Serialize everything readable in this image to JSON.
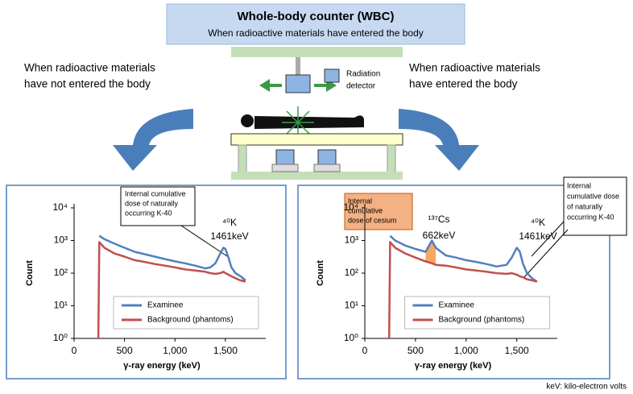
{
  "header": {
    "title": "Whole-body counter (WBC)",
    "subtitle": "When radioactive materials have entered the body"
  },
  "left_caption": [
    "When radioactive materials",
    "have not entered the body"
  ],
  "right_caption": [
    "When radioactive materials",
    "have entered the body"
  ],
  "detector_label": [
    "Radiation",
    "detector"
  ],
  "footnote": "keV: kilo-electron volts",
  "chart_data": [
    {
      "type": "line",
      "xlabel": "γ-ray energy (keV)",
      "ylabel": "Count",
      "yscale": "log",
      "legend": "lower center",
      "annotation": [
        "Internal cumulative",
        "dose of naturally",
        "occurring K-40"
      ],
      "peaks": [
        [
          "⁴⁰K",
          "1461keV"
        ]
      ],
      "xlim": [
        0,
        1900
      ],
      "xticks": [
        0,
        500,
        {
          "value": 1000,
          "label": "1,000"
        },
        {
          "value": 1500,
          "label": "1,500"
        }
      ],
      "ylim": [
        1,
        10000
      ],
      "yticks": [
        {
          "value": 1,
          "label": "10⁰"
        },
        {
          "value": 10,
          "label": "10¹"
        },
        {
          "value": 100,
          "label": "10²"
        },
        {
          "value": 1000,
          "label": "10³"
        },
        {
          "value": 10000,
          "label": "10⁴"
        }
      ],
      "x": [
        240,
        250,
        300,
        400,
        500,
        600,
        700,
        800,
        900,
        1000,
        1100,
        1200,
        1300,
        1350,
        1400,
        1450,
        1480,
        1500,
        1530,
        1560,
        1600,
        1650,
        1700
      ],
      "series": [
        {
          "name": "Examinee",
          "color": "#4f81bd",
          "values": [
            null,
            1400,
            1100,
            800,
            600,
            450,
            380,
            320,
            270,
            230,
            200,
            170,
            140,
            150,
            200,
            400,
            600,
            550,
            300,
            150,
            100,
            80,
            60
          ]
        },
        {
          "name": "Background (phantoms)",
          "color": "#c0504d",
          "values": [
            1,
            900,
            600,
            400,
            320,
            250,
            220,
            190,
            170,
            150,
            130,
            120,
            110,
            100,
            95,
            100,
            110,
            100,
            90,
            80,
            70,
            60,
            55
          ]
        }
      ]
    },
    {
      "type": "line",
      "xlabel": "γ-ray energy (keV)",
      "ylabel": "Count",
      "yscale": "log",
      "legend": "lower center",
      "annotation_cs": [
        "Internal",
        "cumulative",
        "dose of cesium"
      ],
      "annotation_k": [
        "Internal",
        "cumulative dose",
        "of naturally",
        "occurring K-40"
      ],
      "peaks": [
        [
          "¹³⁷Cs",
          "662keV"
        ],
        [
          "⁴⁰K",
          "1461keV"
        ]
      ],
      "xlim": [
        0,
        1900
      ],
      "xticks": [
        0,
        500,
        {
          "value": 1000,
          "label": "1,000"
        },
        {
          "value": 1500,
          "label": "1,500"
        }
      ],
      "ylim": [
        1,
        10000
      ],
      "yticks": [
        {
          "value": 1,
          "label": "10⁰"
        },
        {
          "value": 10,
          "label": "10¹"
        },
        {
          "value": 100,
          "label": "10²"
        },
        {
          "value": 1000,
          "label": "10³"
        },
        {
          "value": 10000,
          "label": "10⁴"
        }
      ],
      "x": [
        240,
        250,
        300,
        400,
        500,
        600,
        662,
        700,
        800,
        900,
        1000,
        1100,
        1200,
        1300,
        1400,
        1450,
        1500,
        1530,
        1560,
        1600,
        1650,
        1700
      ],
      "series": [
        {
          "name": "Examinee",
          "color": "#4f81bd",
          "values": [
            null,
            1400,
            1000,
            700,
            550,
            450,
            1000,
            600,
            350,
            300,
            250,
            220,
            190,
            160,
            180,
            300,
            600,
            450,
            200,
            100,
            70,
            55
          ]
        },
        {
          "name": "Background (phantoms)",
          "color": "#c0504d",
          "values": [
            1,
            900,
            600,
            400,
            300,
            230,
            200,
            180,
            170,
            150,
            130,
            120,
            110,
            100,
            95,
            100,
            90,
            80,
            75,
            65,
            60,
            55
          ]
        }
      ]
    }
  ]
}
